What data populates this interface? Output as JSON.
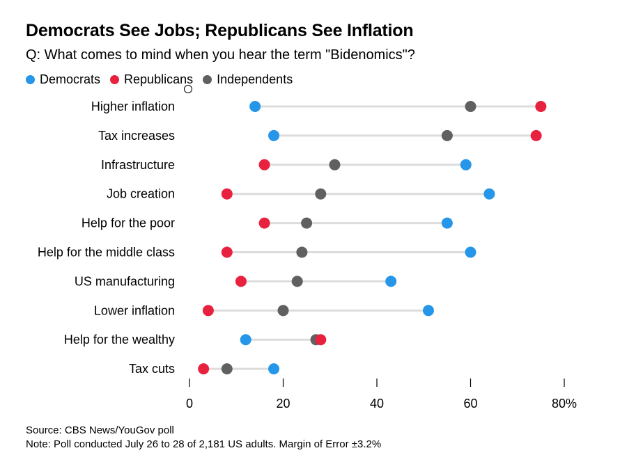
{
  "chart_data": {
    "type": "dot",
    "title": "Democrats See Jobs; Republicans See Inflation",
    "subtitle": "Q: What comes to mind when you hear the term \"Bidenomics\"?",
    "xlim": [
      0,
      80
    ],
    "xticks": [
      "0",
      "20",
      "40",
      "60",
      "80%"
    ],
    "tick_values": [
      0,
      20,
      40,
      60,
      80
    ],
    "categories": [
      "Higher inflation",
      "Tax increases",
      "Infrastructure",
      "Job creation",
      "Help for the poor",
      "Help for the middle class",
      "US manufacturing",
      "Lower inflation",
      "Help for the wealthy",
      "Tax cuts"
    ],
    "series": [
      {
        "name": "Democrats",
        "color": "#2596e8",
        "values": [
          14,
          18,
          59,
          64,
          55,
          60,
          43,
          51,
          12,
          18
        ]
      },
      {
        "name": "Independents",
        "color": "#606060",
        "values": [
          60,
          55,
          31,
          28,
          25,
          24,
          23,
          20,
          27,
          8
        ]
      },
      {
        "name": "Republicans",
        "color": "#e8213f",
        "values": [
          75,
          74,
          16,
          8,
          16,
          8,
          11,
          4,
          28,
          3
        ]
      }
    ],
    "legend": [
      {
        "label": "Democrats",
        "color": "#2596e8"
      },
      {
        "label": "Republicans",
        "color": "#e8213f"
      },
      {
        "label": "Independents",
        "color": "#606060"
      }
    ],
    "source": "Source: CBS News/YouGov poll",
    "note": "Note: Poll conducted July 26 to 28 of 2,181 US adults. Margin of Error ±3.2%"
  }
}
